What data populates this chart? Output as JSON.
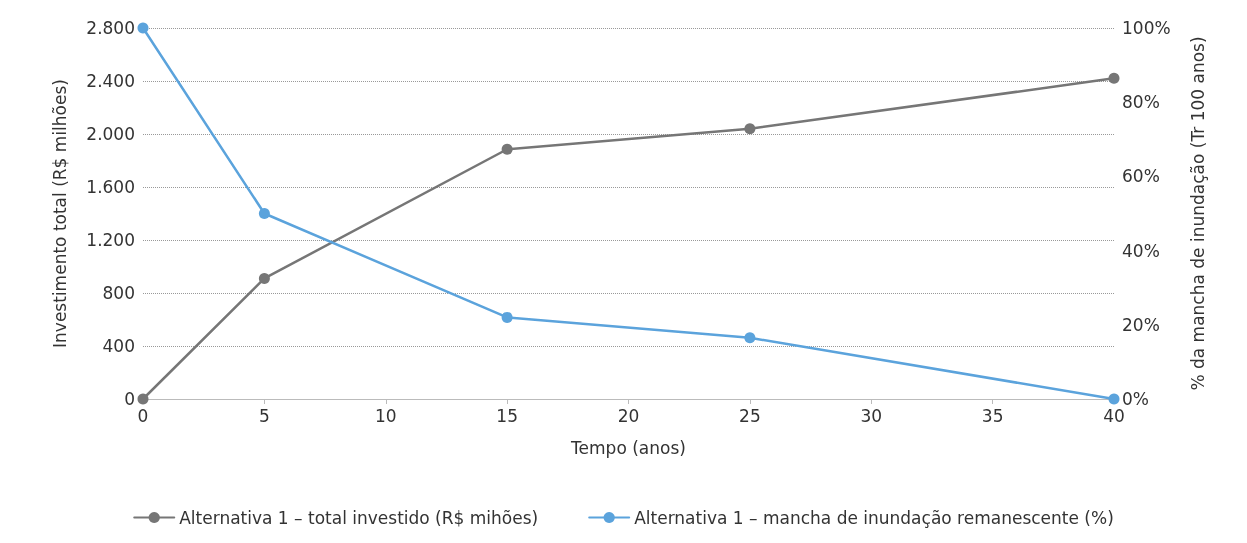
{
  "chart_data": {
    "type": "line",
    "xlabel": "Tempo (anos)",
    "ylabel": "Investimento total (R$ milhões)",
    "y2label": "% da mancha de inundação (Tr 100 anos)",
    "series": [
      {
        "name": "Alternativa 1 – total investido (R$ mihões)",
        "color": "#767676",
        "x": [
          0,
          5,
          15,
          25,
          40
        ],
        "values": [
          0,
          910,
          1885,
          2040,
          2420
        ]
      },
      {
        "name": "Alternativa 1 – mancha de inundação remanescente (%)",
        "color": "#5ba3dc",
        "axis": "y2",
        "x": [
          0,
          5,
          15,
          25,
          40
        ],
        "values": [
          100,
          50,
          22,
          16.5,
          0
        ]
      }
    ],
    "xlim": [
      0,
      40
    ],
    "xticks": [
      0,
      5,
      10,
      15,
      20,
      25,
      30,
      35,
      40
    ],
    "ylim": [
      0,
      2800
    ],
    "yticks": [
      0,
      400,
      800,
      {
        "value": 1200,
        "label": "1.200"
      },
      {
        "value": 1600,
        "label": "1.600"
      },
      {
        "value": 2000,
        "label": "2.000"
      },
      {
        "value": 2400,
        "label": "2.400"
      },
      {
        "value": 2800,
        "label": "2.800"
      }
    ],
    "y2lim": [
      0,
      100
    ],
    "y2ticks": [
      {
        "value": 0,
        "label": "0%"
      },
      {
        "value": 20,
        "label": "20%"
      },
      {
        "value": 40,
        "label": "40%"
      },
      {
        "value": 60,
        "label": "60%"
      },
      {
        "value": 80,
        "label": "80%"
      },
      {
        "value": 100,
        "label": "100%"
      }
    ],
    "grid": "y",
    "legend": "bottom",
    "marker": "circle",
    "line_style": "solid"
  }
}
